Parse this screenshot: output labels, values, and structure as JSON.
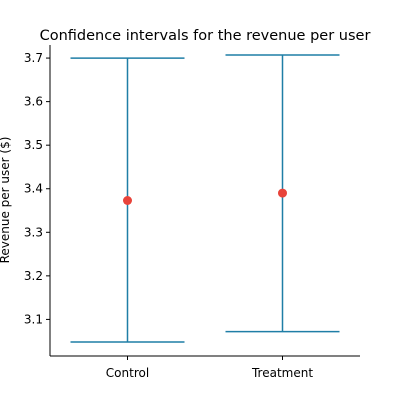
{
  "chart_data": {
    "type": "errorbar",
    "title": "Confidence intervals for the revenue per user",
    "xlabel": "",
    "ylabel": "Revenue per user ($)",
    "categories": [
      "Control",
      "Treatment"
    ],
    "points": [
      {
        "category": "Control",
        "mean": 3.373,
        "lower": 3.048,
        "upper": 3.7
      },
      {
        "category": "Treatment",
        "mean": 3.39,
        "lower": 3.072,
        "upper": 3.707
      }
    ],
    "yticks": [
      "3.1",
      "3.2",
      "3.3",
      "3.4",
      "3.5",
      "3.6",
      "3.7"
    ],
    "ylim": [
      3.016,
      3.73
    ],
    "grid": false,
    "colors": {
      "interval": "#1f7ea6",
      "mean": "#e8433a"
    }
  }
}
